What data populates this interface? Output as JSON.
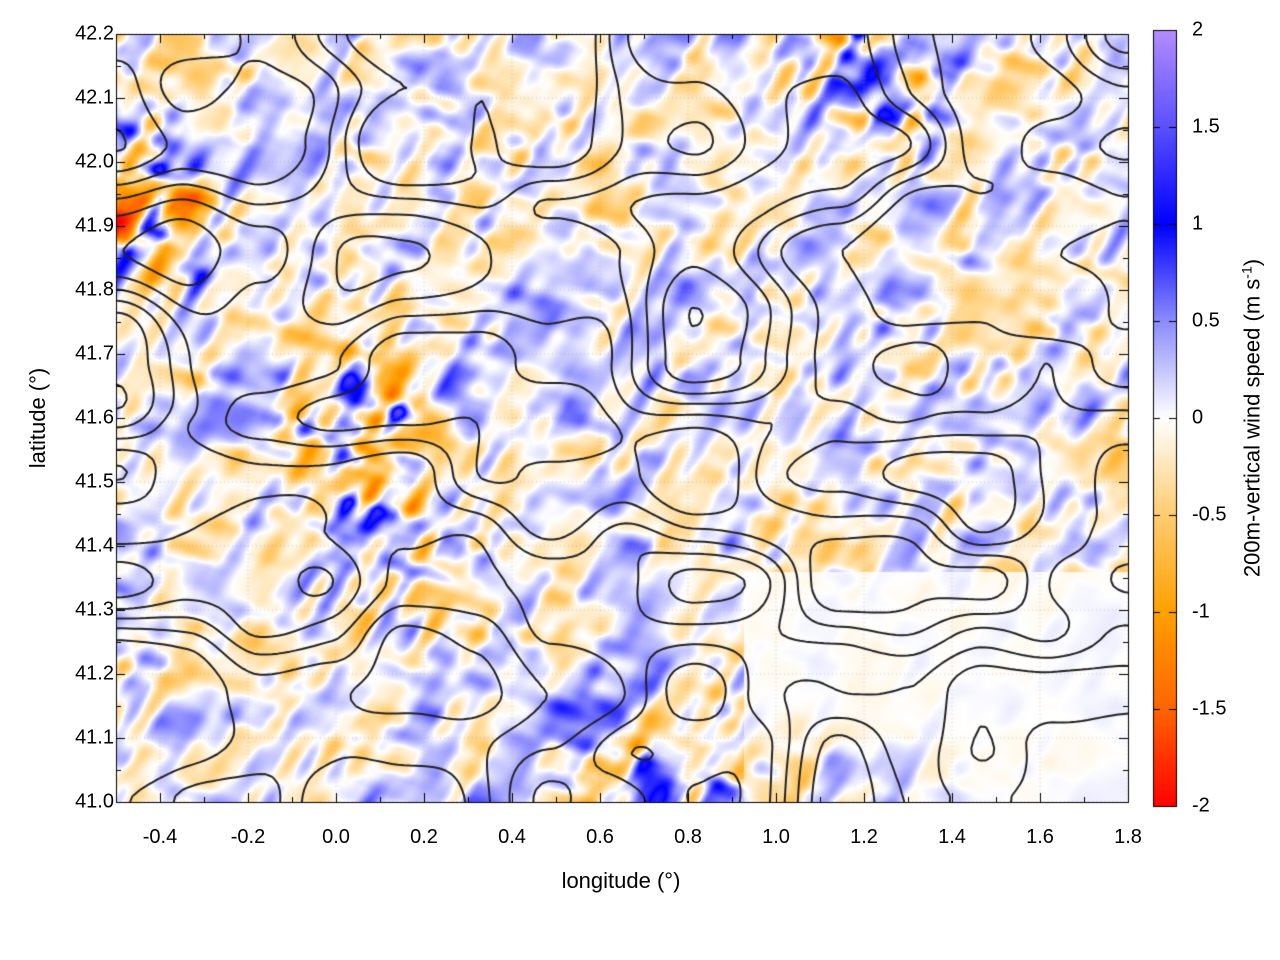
{
  "chart_data": {
    "type": "heatmap",
    "title": "",
    "xlabel": "longitude (°)",
    "ylabel": "latitude (°)",
    "xlim": [
      -0.5,
      1.8
    ],
    "ylim": [
      41.0,
      42.2
    ],
    "xticks": [
      "-0.4",
      "-0.2",
      "0.0",
      "0.2",
      "0.4",
      "0.6",
      "0.8",
      "1.0",
      "1.2",
      "1.4",
      "1.6",
      "1.8"
    ],
    "yticks": [
      "41.0",
      "41.1",
      "41.2",
      "41.3",
      "41.4",
      "41.5",
      "41.6",
      "41.7",
      "41.8",
      "41.9",
      "42.0",
      "42.1",
      "42.2"
    ],
    "grid": true,
    "colorbar": {
      "label_main": "200m-vertical wind speed (m s",
      "label_sup": "-1",
      "label_close": ")",
      "range": [
        -2,
        2
      ],
      "ticks": [
        "2",
        "1.5",
        "1",
        "0.5",
        "0",
        "-0.5",
        "-1",
        "-1.5",
        "-2"
      ],
      "colors": {
        "2": "#b48cff",
        "1.5": "#5a50ff",
        "1": "#0000ff",
        "0.5": "#8c8cff",
        "0": "#ffffff",
        "-0.5": "#ffcc70",
        "-1": "#ffa000",
        "-1.5": "#ff6400",
        "-2": "#ff0000"
      }
    },
    "overlay": "black terrain contour lines"
  }
}
